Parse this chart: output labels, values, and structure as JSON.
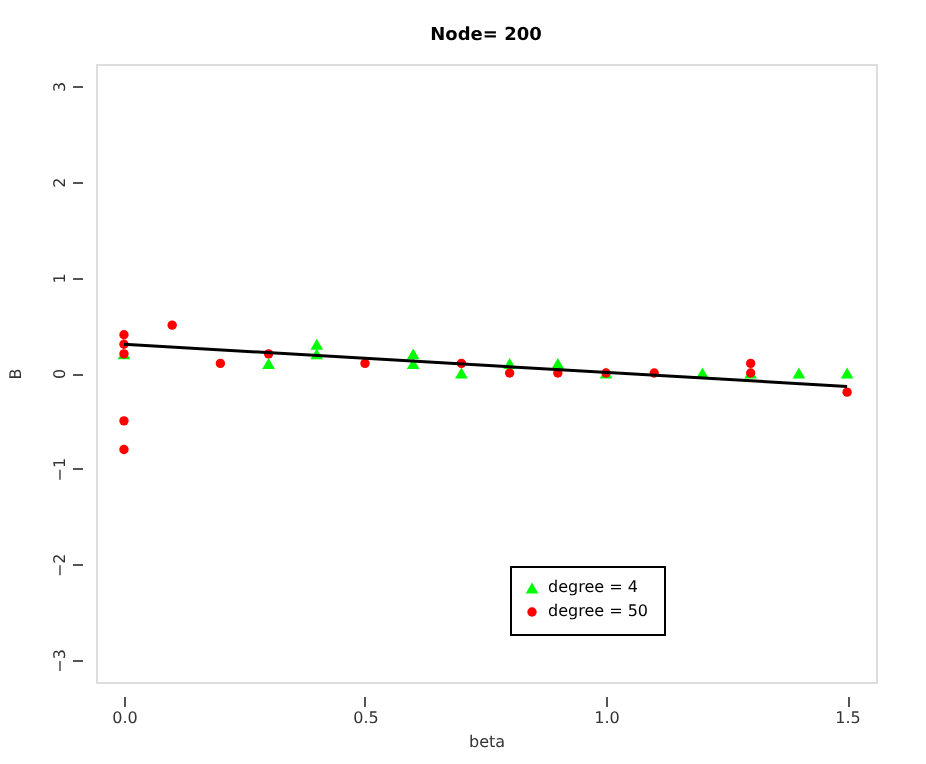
{
  "chart_data": {
    "type": "scatter",
    "title": "Node= 200",
    "xlabel": "beta",
    "ylabel": "B",
    "xlim": [
      -0.058,
      1.56
    ],
    "ylim": [
      -3.23,
      3.23
    ],
    "xticks": [
      {
        "value": 0,
        "label": "0.0"
      },
      0.5,
      {
        "value": 1,
        "label": "1.0"
      },
      1.5
    ],
    "yticks": [
      -3,
      -2,
      -1,
      0,
      1,
      2,
      3
    ],
    "grid": false,
    "legend": "bottom right",
    "series": [
      {
        "name": "degree = 4",
        "color": "#00ff00",
        "marker": "triangle",
        "x": [
          0,
          0.3,
          0.4,
          0.4,
          0.6,
          0.6,
          0.7,
          0.8,
          0.9,
          1.0,
          1.2,
          1.3,
          1.4,
          1.5
        ],
        "values": [
          0.2,
          0.1,
          0.3,
          0.2,
          0.2,
          0.1,
          0.0,
          0.1,
          0.1,
          0.0,
          0.0,
          0.0,
          0.0,
          0.0
        ]
      },
      {
        "name": "degree = 50",
        "color": "#ff0000",
        "marker": "circle",
        "x": [
          0,
          0,
          0,
          0,
          0,
          0.1,
          0.2,
          0.3,
          0.5,
          0.7,
          0.8,
          0.9,
          1.0,
          1.1,
          1.3,
          1.3,
          1.5
        ],
        "values": [
          0.4,
          0.3,
          0.2,
          -0.5,
          -0.8,
          0.5,
          0.1,
          0.2,
          0.1,
          0.1,
          0.0,
          0.0,
          0.0,
          0.0,
          0.1,
          0.0,
          -0.2
        ]
      },
      {
        "type": "line",
        "color": "#000000",
        "x": [
          0,
          1.5
        ],
        "values": [
          0.3,
          -0.14
        ]
      }
    ]
  }
}
